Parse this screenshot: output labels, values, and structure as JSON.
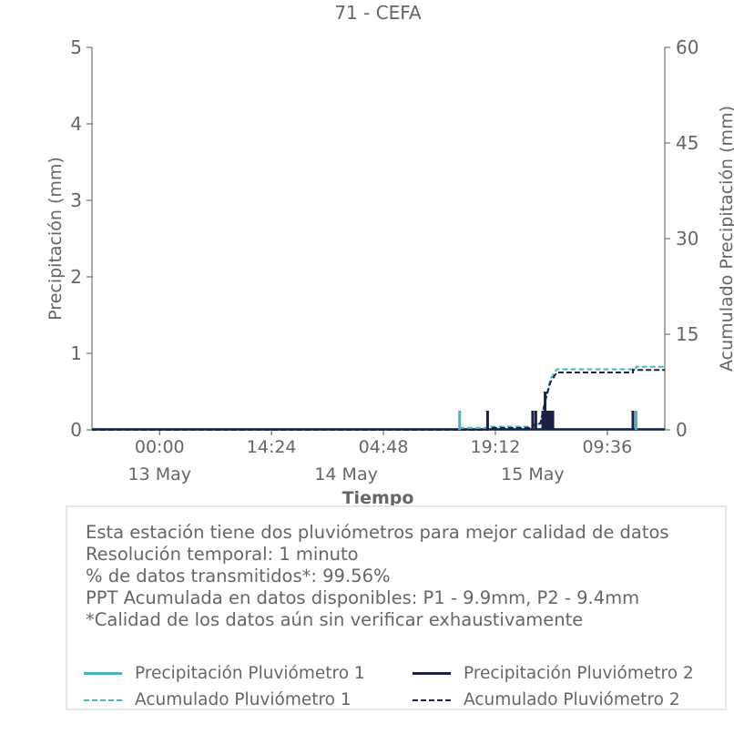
{
  "chart_data": {
    "type": "bar",
    "title": "71 - CEFA",
    "xlabel": "Tiempo",
    "ylabel": "Precipitación (mm)",
    "y2label": "Acumulado Precipitación (mm)",
    "ylim": [
      0,
      5
    ],
    "y2lim": [
      0,
      60
    ],
    "yticks": [
      "0",
      "1",
      "2",
      "3",
      "4",
      "5"
    ],
    "y2ticks": [
      "0",
      "15",
      "30",
      "45",
      "60"
    ],
    "xrange_hours": [
      -8.7,
      65
    ],
    "xticks": [
      {
        "hour": 0,
        "label": "00:00"
      },
      {
        "hour": 14.4,
        "label": "14:24"
      },
      {
        "hour": 28.8,
        "label": "04:48"
      },
      {
        "hour": 43.2,
        "label": "19:12"
      },
      {
        "hour": 57.6,
        "label": "09:36"
      }
    ],
    "date_labels": [
      {
        "hour": 0,
        "label": "13 May"
      },
      {
        "hour": 24,
        "label": "14 May"
      },
      {
        "hour": 48,
        "label": "15 May"
      }
    ],
    "grid": false,
    "colors": {
      "p1": "#4ab3bf",
      "p2": "#1c2046"
    },
    "series": [
      {
        "name": "Precipitación Pluviómetro 1",
        "kind": "bar",
        "points": [
          [
            38.6,
            0.25
          ],
          [
            49.8,
            0.25
          ],
          [
            61.3,
            0.25
          ]
        ]
      },
      {
        "name": "Precipitación Pluviómetro 2",
        "kind": "bar",
        "points": [
          [
            42.2,
            0.25
          ],
          [
            48.0,
            0.25
          ],
          [
            48.4,
            0.25
          ],
          [
            49.3,
            0.25
          ],
          [
            49.6,
            0.5
          ],
          [
            49.9,
            0.25
          ],
          [
            50.1,
            0.25
          ],
          [
            50.3,
            0.25
          ],
          [
            50.6,
            0.25
          ],
          [
            60.9,
            0.25
          ]
        ]
      },
      {
        "name": "Acumulado Pluviómetro 1",
        "kind": "step",
        "points": [
          [
            -8.7,
            0
          ],
          [
            38.6,
            0
          ],
          [
            38.6,
            0.3
          ],
          [
            42.2,
            0.3
          ],
          [
            42.2,
            0.5
          ],
          [
            48.0,
            0.5
          ],
          [
            48.0,
            0.8
          ],
          [
            49.0,
            1.0
          ],
          [
            49.6,
            4.5
          ],
          [
            50.3,
            8.0
          ],
          [
            51.1,
            9.5
          ],
          [
            61.3,
            9.5
          ],
          [
            61.3,
            9.9
          ],
          [
            65,
            9.9
          ]
        ]
      },
      {
        "name": "Acumulado Pluviómetro 2",
        "kind": "step",
        "points": [
          [
            -8.7,
            0
          ],
          [
            42.2,
            0
          ],
          [
            42.2,
            0.3
          ],
          [
            48.0,
            0.3
          ],
          [
            48.0,
            0.6
          ],
          [
            49.0,
            1.0
          ],
          [
            49.6,
            4.5
          ],
          [
            50.3,
            7.5
          ],
          [
            51.1,
            9.0
          ],
          [
            60.9,
            9.0
          ],
          [
            60.9,
            9.4
          ],
          [
            65,
            9.4
          ]
        ]
      }
    ]
  },
  "info": {
    "line1": "Esta estación tiene dos pluviómetros para mejor calidad de datos",
    "line2": "Resolución temporal: 1 minuto",
    "line3": "% de datos transmitidos*: 99.56%",
    "line4": "PPT Acumulada en datos disponibles: P1 - 9.9mm, P2 - 9.4mm",
    "line5": "*Calidad de los datos aún sin verificar exhaustivamente"
  },
  "legend": {
    "p1_precip": "Precipitación Pluviómetro 1",
    "p2_precip": "Precipitación Pluviómetro 2",
    "p1_acum": "Acumulado Pluviómetro 1",
    "p2_acum": "Acumulado Pluviómetro 2"
  }
}
